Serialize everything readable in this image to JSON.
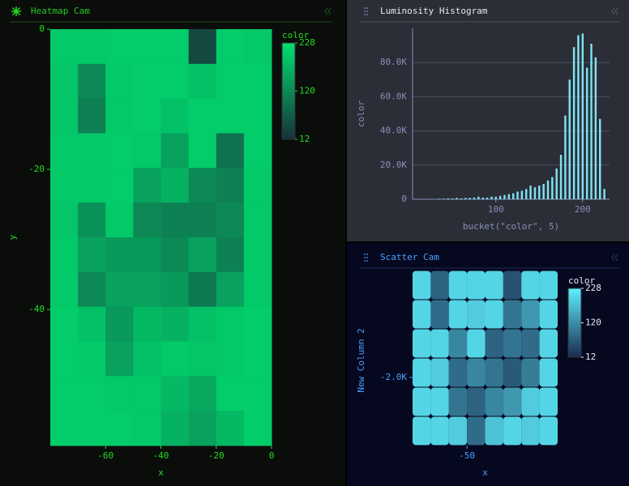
{
  "chart_data": [
    {
      "type": "heatmap",
      "title": "Heatmap Cam",
      "x_label": "x",
      "y_label": "y",
      "xlim": [
        -80,
        0
      ],
      "ylim": [
        0,
        -59.4
      ],
      "xticks": [
        -60,
        -40,
        -20,
        0
      ],
      "yticks": [
        0,
        -20,
        -40
      ],
      "colorscale": [
        "#17323a",
        "#00e070"
      ],
      "colorbar": {
        "title": "color",
        "range": [
          12,
          228
        ],
        "ticks": [
          228,
          120,
          12
        ]
      },
      "z": [
        [
          200,
          200,
          205,
          205,
          205,
          40,
          205,
          200
        ],
        [
          195,
          120,
          200,
          205,
          205,
          190,
          205,
          205
        ],
        [
          195,
          110,
          200,
          205,
          190,
          205,
          205,
          205
        ],
        [
          200,
          200,
          205,
          200,
          150,
          205,
          90,
          205
        ],
        [
          200,
          200,
          205,
          150,
          170,
          120,
          110,
          200
        ],
        [
          195,
          130,
          200,
          120,
          110,
          110,
          120,
          200
        ],
        [
          200,
          150,
          140,
          140,
          120,
          150,
          110,
          200
        ],
        [
          200,
          120,
          150,
          150,
          140,
          100,
          150,
          200
        ],
        [
          205,
          190,
          140,
          180,
          170,
          190,
          200,
          205
        ],
        [
          205,
          200,
          150,
          190,
          200,
          195,
          200,
          205
        ],
        [
          205,
          205,
          200,
          200,
          180,
          160,
          205,
          205
        ],
        [
          205,
          205,
          205,
          200,
          170,
          150,
          180,
          205
        ]
      ]
    },
    {
      "type": "histogram",
      "title": "Luminosity Histogram",
      "x_label": "bucket(\"color\", 5)",
      "y_label": "color",
      "color": "#7fe3f2",
      "grid": true,
      "xlim": [
        4,
        231
      ],
      "ylim": [
        0,
        100000
      ],
      "xticks": [
        100,
        200
      ],
      "yticks": [
        0,
        {
          "value": 20000,
          "label": "20.0K"
        },
        {
          "value": 40000,
          "label": "40.0K"
        },
        {
          "value": 60000,
          "label": "60.0K"
        },
        {
          "value": 80000,
          "label": "80.0K"
        }
      ],
      "x": [
        35,
        40,
        45,
        50,
        55,
        60,
        65,
        70,
        75,
        80,
        85,
        90,
        95,
        100,
        105,
        110,
        115,
        120,
        125,
        130,
        135,
        140,
        145,
        150,
        155,
        160,
        165,
        170,
        175,
        180,
        185,
        190,
        195,
        200,
        205,
        210,
        215,
        220,
        225
      ],
      "values": [
        300,
        300,
        500,
        500,
        800,
        500,
        800,
        800,
        1000,
        1500,
        1000,
        1000,
        1500,
        1500,
        2000,
        2500,
        3000,
        3500,
        4500,
        5000,
        6000,
        8000,
        7000,
        8000,
        9000,
        11000,
        13000,
        18000,
        26000,
        49000,
        70000,
        89000,
        96000,
        97000,
        77000,
        91000,
        83000,
        47000,
        6000
      ]
    },
    {
      "type": "scatter",
      "title": "Scatter Cam",
      "x_label": "x",
      "y_label": "New Column 2",
      "xlim": [
        -80,
        0
      ],
      "ylim": [
        -2700,
        -950
      ],
      "xticks": [
        -50
      ],
      "yticks": [
        {
          "value": -2000,
          "label": "-2.0K"
        }
      ],
      "colorscale": [
        "#1a2a50",
        "#5ef0ff"
      ],
      "colorbar": {
        "title": "color",
        "range": [
          12,
          228
        ],
        "ticks": [
          228,
          120,
          12
        ]
      },
      "x": [
        -75,
        -65,
        -55,
        -45,
        -35,
        -25,
        -15,
        -5,
        -75,
        -65,
        -55,
        -45,
        -35,
        -25,
        -15,
        -5,
        -75,
        -65,
        -55,
        -45,
        -35,
        -25,
        -15,
        -5,
        -75,
        -65,
        -55,
        -45,
        -35,
        -25,
        -15,
        -5,
        -75,
        -65,
        -55,
        -45,
        -35,
        -25,
        -15,
        -5,
        -75,
        -65,
        -55,
        -45,
        -35,
        -25,
        -15,
        -5
      ],
      "y": [
        -1050,
        -1050,
        -1050,
        -1050,
        -1050,
        -1050,
        -1050,
        -1050,
        -1350,
        -1350,
        -1350,
        -1350,
        -1350,
        -1350,
        -1350,
        -1350,
        -1650,
        -1650,
        -1650,
        -1650,
        -1650,
        -1650,
        -1650,
        -1650,
        -1950,
        -1950,
        -1950,
        -1950,
        -1950,
        -1950,
        -1950,
        -1950,
        -2250,
        -2250,
        -2250,
        -2250,
        -2250,
        -2250,
        -2250,
        -2250,
        -2550,
        -2550,
        -2550,
        -2550,
        -2550,
        -2550,
        -2550,
        -2550
      ],
      "color": [
        210,
        80,
        210,
        210,
        210,
        60,
        210,
        210,
        210,
        90,
        210,
        200,
        210,
        100,
        140,
        210,
        210,
        210,
        120,
        210,
        80,
        100,
        90,
        210,
        210,
        200,
        90,
        120,
        100,
        70,
        110,
        210,
        210,
        210,
        100,
        80,
        120,
        140,
        200,
        210,
        210,
        210,
        200,
        90,
        190,
        210,
        200,
        210
      ]
    }
  ]
}
